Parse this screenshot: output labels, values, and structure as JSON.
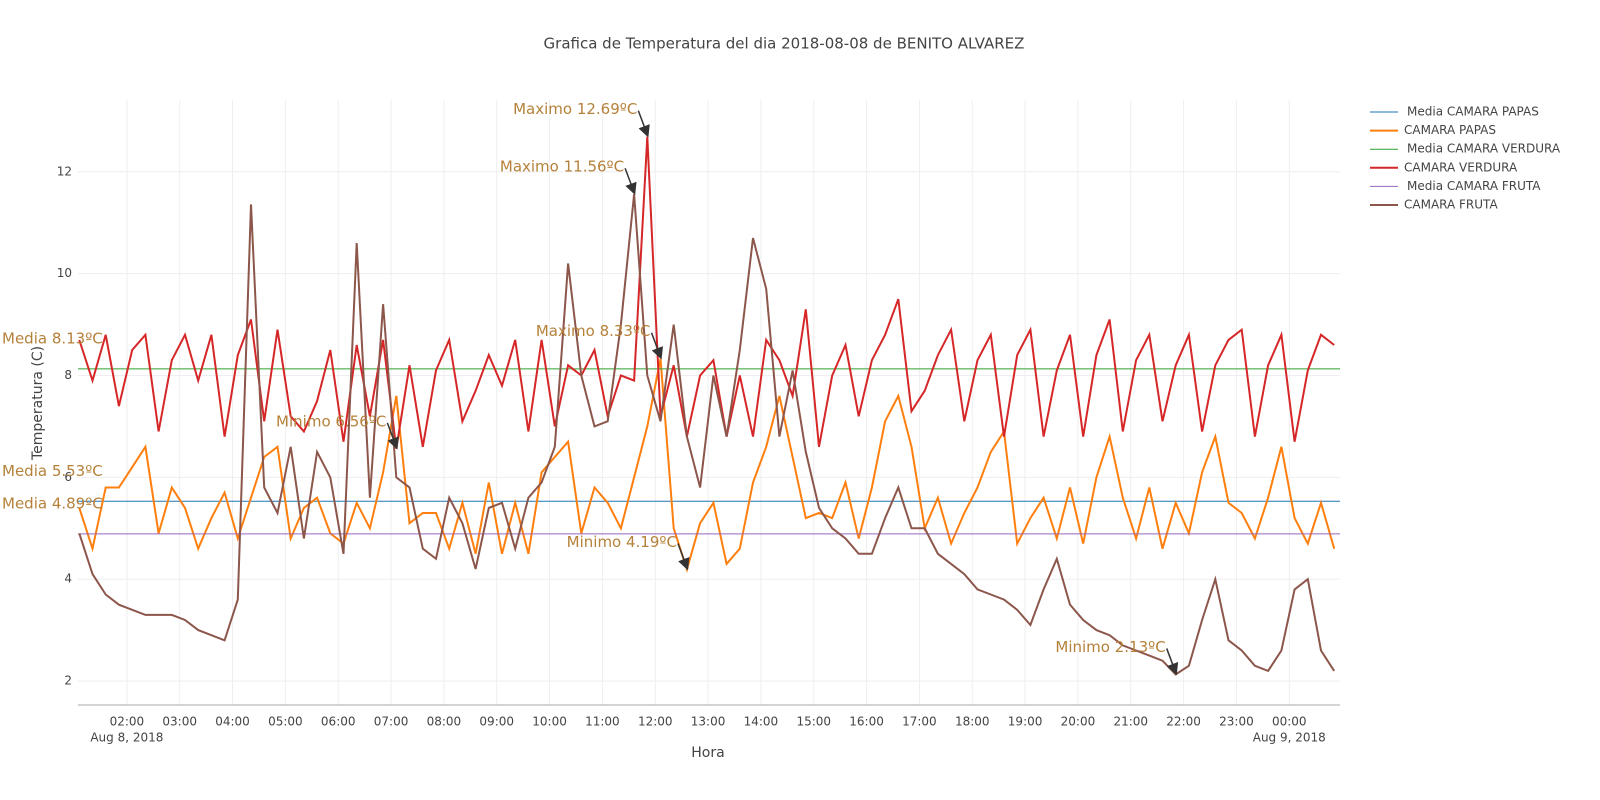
{
  "chart_data": {
    "type": "line",
    "title": "Grafica de Temperatura del dia 2018-08-08 de BENITO ALVAREZ",
    "xlabel": "Hora",
    "ylabel": "Temperatura (C)",
    "xlim": [
      1.075,
      24.96
    ],
    "ylim": [
      1.53,
      13.41
    ],
    "xticks": [
      {
        "value": 2,
        "label": "02:00"
      },
      {
        "value": 3,
        "label": "03:00"
      },
      {
        "value": 4,
        "label": "04:00"
      },
      {
        "value": 5,
        "label": "05:00"
      },
      {
        "value": 6,
        "label": "06:00"
      },
      {
        "value": 7,
        "label": "07:00"
      },
      {
        "value": 8,
        "label": "08:00"
      },
      {
        "value": 9,
        "label": "09:00"
      },
      {
        "value": 10,
        "label": "10:00"
      },
      {
        "value": 11,
        "label": "11:00"
      },
      {
        "value": 12,
        "label": "12:00"
      },
      {
        "value": 13,
        "label": "13:00"
      },
      {
        "value": 14,
        "label": "14:00"
      },
      {
        "value": 15,
        "label": "15:00"
      },
      {
        "value": 16,
        "label": "16:00"
      },
      {
        "value": 17,
        "label": "17:00"
      },
      {
        "value": 18,
        "label": "18:00"
      },
      {
        "value": 19,
        "label": "19:00"
      },
      {
        "value": 20,
        "label": "20:00"
      },
      {
        "value": 21,
        "label": "21:00"
      },
      {
        "value": 22,
        "label": "22:00"
      },
      {
        "value": 23,
        "label": "23:00"
      },
      {
        "value": 24,
        "label": "00:00"
      }
    ],
    "xtick_dates": [
      {
        "value": 2,
        "label": "Aug 8, 2018"
      },
      {
        "value": 24,
        "label": "Aug 9, 2018"
      }
    ],
    "yticks": [
      2,
      4,
      6,
      8,
      10,
      12
    ],
    "grid": true,
    "legend": "right",
    "x": [
      1.1,
      1.35,
      1.6,
      1.85,
      2.1,
      2.35,
      2.6,
      2.85,
      3.1,
      3.35,
      3.6,
      3.85,
      4.1,
      4.35,
      4.6,
      4.85,
      5.1,
      5.35,
      5.6,
      5.85,
      6.1,
      6.35,
      6.6,
      6.85,
      7.1,
      7.35,
      7.6,
      7.85,
      8.1,
      8.35,
      8.6,
      8.85,
      9.1,
      9.35,
      9.6,
      9.85,
      10.1,
      10.35,
      10.6,
      10.85,
      11.1,
      11.35,
      11.6,
      11.85,
      12.1,
      12.35,
      12.6,
      12.85,
      13.1,
      13.35,
      13.6,
      13.85,
      14.1,
      14.35,
      14.6,
      14.85,
      15.1,
      15.35,
      15.6,
      15.85,
      16.1,
      16.35,
      16.6,
      16.85,
      17.1,
      17.35,
      17.6,
      17.85,
      18.1,
      18.35,
      18.6,
      18.85,
      19.1,
      19.35,
      19.6,
      19.85,
      20.1,
      20.35,
      20.6,
      20.85,
      21.1,
      21.35,
      21.6,
      21.85,
      22.1,
      22.35,
      22.6,
      22.85,
      23.1,
      23.35,
      23.6,
      23.85,
      24.1,
      24.35,
      24.6,
      24.85
    ],
    "series": [
      {
        "name": "Media CAMARA PAPAS",
        "color": "#1f77b4",
        "value": 5.53,
        "label": "Media 5.53ºC"
      },
      {
        "name": "CAMARA PAPAS",
        "color": "#ff7f0e",
        "values": [
          5.4,
          4.6,
          5.8,
          5.8,
          6.2,
          6.6,
          4.9,
          5.8,
          5.4,
          4.6,
          5.2,
          5.7,
          4.8,
          5.6,
          6.4,
          6.6,
          4.8,
          5.4,
          5.6,
          4.9,
          4.7,
          5.5,
          5.0,
          6.1,
          7.6,
          5.1,
          5.3,
          5.3,
          4.6,
          5.5,
          4.5,
          5.9,
          4.5,
          5.5,
          4.5,
          6.1,
          6.4,
          6.7,
          4.9,
          5.8,
          5.5,
          5.0,
          6.0,
          7.0,
          8.33,
          5.0,
          4.19,
          5.1,
          5.5,
          4.3,
          4.6,
          5.9,
          6.6,
          7.6,
          6.4,
          5.2,
          5.3,
          5.2,
          5.9,
          4.8,
          5.8,
          7.1,
          7.6,
          6.6,
          5.0,
          5.6,
          4.7,
          5.3,
          5.8,
          6.5,
          6.9,
          4.7,
          5.2,
          5.6,
          4.8,
          5.8,
          4.7,
          6.0,
          6.8,
          5.6,
          4.8,
          5.8,
          4.6,
          5.5,
          4.9,
          6.1,
          6.8,
          5.5,
          5.3,
          4.8,
          5.6,
          6.6,
          5.2,
          4.7,
          5.5,
          4.6
        ]
      },
      {
        "name": "Media CAMARA VERDURA",
        "color": "#2ca02c",
        "value": 8.13,
        "label": "Media 8.13ºC"
      },
      {
        "name": "CAMARA VERDURA",
        "color": "#d62728",
        "values": [
          8.7,
          7.9,
          8.8,
          7.4,
          8.5,
          8.8,
          6.9,
          8.3,
          8.8,
          7.9,
          8.8,
          6.8,
          8.4,
          9.1,
          7.1,
          8.9,
          7.2,
          6.9,
          7.5,
          8.5,
          6.7,
          8.6,
          7.2,
          8.7,
          6.56,
          8.2,
          6.6,
          8.1,
          8.7,
          7.1,
          7.7,
          8.4,
          7.8,
          8.7,
          6.9,
          8.7,
          7.0,
          8.2,
          8.0,
          8.5,
          7.2,
          8.0,
          7.9,
          12.69,
          7.2,
          8.2,
          6.8,
          8.0,
          8.3,
          6.8,
          8.0,
          6.8,
          8.7,
          8.3,
          7.6,
          9.3,
          6.6,
          8.0,
          8.6,
          7.2,
          8.3,
          8.8,
          9.5,
          7.3,
          7.7,
          8.4,
          8.9,
          7.1,
          8.3,
          8.8,
          6.8,
          8.4,
          8.9,
          6.8,
          8.1,
          8.8,
          6.8,
          8.4,
          9.1,
          6.9,
          8.3,
          8.8,
          7.1,
          8.2,
          8.8,
          6.9,
          8.2,
          8.7,
          8.9,
          6.8,
          8.2,
          8.8,
          6.7,
          8.1,
          8.8,
          8.6
        ]
      },
      {
        "name": "Media CAMARA FRUTA",
        "color": "#9467bd",
        "value": 4.89,
        "label": "Media 4.89ºC"
      },
      {
        "name": "CAMARA FRUTA",
        "color": "#8c564b",
        "values": [
          4.9,
          4.1,
          3.7,
          3.5,
          3.4,
          3.3,
          3.3,
          3.3,
          3.2,
          3.0,
          2.9,
          2.8,
          3.6,
          11.36,
          5.8,
          5.3,
          6.6,
          4.8,
          6.5,
          6.0,
          4.5,
          10.6,
          5.6,
          9.4,
          6.0,
          5.8,
          4.6,
          4.4,
          5.6,
          5.1,
          4.2,
          5.4,
          5.5,
          4.6,
          5.6,
          5.9,
          6.6,
          10.2,
          8.0,
          7.0,
          7.1,
          9.0,
          11.56,
          8.0,
          7.1,
          9.0,
          6.8,
          5.8,
          8.0,
          6.8,
          8.5,
          10.7,
          9.7,
          6.8,
          8.1,
          6.5,
          5.4,
          5.0,
          4.8,
          4.5,
          4.5,
          5.2,
          5.8,
          5.0,
          5.0,
          4.5,
          4.3,
          4.1,
          3.8,
          3.7,
          3.6,
          3.4,
          3.1,
          3.8,
          4.4,
          3.5,
          3.2,
          3.0,
          2.9,
          2.7,
          2.6,
          2.5,
          2.4,
          2.13,
          2.3,
          3.2,
          4.0,
          2.8,
          2.6,
          2.3,
          2.2,
          2.6,
          3.8,
          4.0,
          2.6,
          2.2
        ]
      }
    ],
    "annotations": [
      {
        "text": "Maximo 12.69ºC",
        "x": 11.85,
        "y": 12.69
      },
      {
        "text": "Maximo 11.56ºC",
        "x": 11.6,
        "y": 11.56
      },
      {
        "text": "Maximo 8.33ºC",
        "x": 12.1,
        "y": 8.33
      },
      {
        "text": "Minimo 6.56ºC",
        "x": 7.1,
        "y": 6.56
      },
      {
        "text": "Minimo 4.19ºC",
        "x": 12.6,
        "y": 4.19
      },
      {
        "text": "Minimo 2.13ºC",
        "x": 21.85,
        "y": 2.13
      }
    ]
  }
}
